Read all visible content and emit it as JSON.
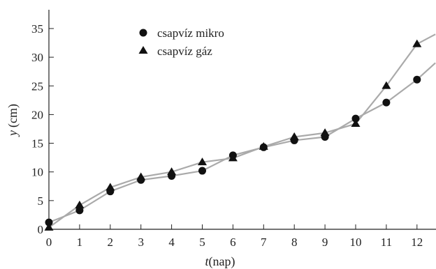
{
  "chart_data": {
    "type": "line",
    "xlabel_var": "t",
    "xlabel_unit": "(nap)",
    "ylabel_var": "y",
    "ylabel_unit": "(cm)",
    "xlim": [
      0,
      12.6
    ],
    "ylim": [
      0,
      37.5
    ],
    "x_ticks": [
      0,
      1,
      2,
      3,
      4,
      5,
      6,
      7,
      8,
      9,
      10,
      11,
      12
    ],
    "y_ticks": [
      0,
      5,
      10,
      15,
      20,
      25,
      30,
      35
    ],
    "grid": false,
    "legend_position": "top-left",
    "series": [
      {
        "name": "csapvíz mikro",
        "marker": "circle",
        "x": [
          0,
          1,
          2,
          3,
          4,
          5,
          6,
          7,
          8,
          9,
          10,
          11,
          12
        ],
        "y": [
          1.2,
          3.3,
          6.6,
          8.6,
          9.3,
          10.2,
          12.9,
          14.3,
          15.5,
          16.1,
          19.3,
          22.1,
          26.1
        ],
        "line_end": [
          12.6,
          29
        ]
      },
      {
        "name": "csapvíz gáz",
        "marker": "triangle",
        "x": [
          0,
          1,
          2,
          3,
          4,
          5,
          6,
          7,
          8,
          9,
          10,
          11,
          12
        ],
        "y": [
          0.3,
          4.2,
          7.3,
          9.1,
          10.0,
          11.7,
          12.4,
          14.4,
          16.1,
          16.8,
          18.4,
          25.0,
          32.3
        ],
        "line_end": [
          12.6,
          34
        ]
      }
    ],
    "colors": {
      "line": "#aaaaaa",
      "marker": "#111111",
      "axis": "#222222"
    }
  }
}
